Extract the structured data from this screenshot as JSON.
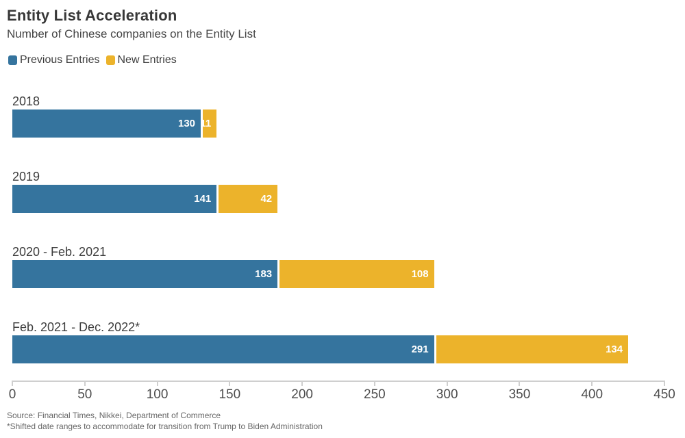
{
  "header": {
    "title": "Entity List Acceleration",
    "subtitle": "Number of Chinese companies on the Entity List"
  },
  "legend": [
    {
      "label": "Previous Entries",
      "color": "#35749e"
    },
    {
      "label": "New Entries",
      "color": "#ecb32b"
    }
  ],
  "chart_data": {
    "type": "bar",
    "orientation": "horizontal",
    "stacked": true,
    "title": "Entity List Acceleration",
    "subtitle": "Number of Chinese companies on the Entity List",
    "categories": [
      "2018",
      "2019",
      "2020 - Feb. 2021",
      "Feb. 2021 - Dec. 2022*"
    ],
    "series": [
      {
        "name": "Previous Entries",
        "color": "#35749e",
        "values": [
          130,
          141,
          183,
          291
        ]
      },
      {
        "name": "New Entries",
        "color": "#ecb32b",
        "values": [
          11,
          42,
          108,
          134
        ]
      }
    ],
    "xlabel": "",
    "ylabel": "",
    "xlim": [
      0,
      450
    ],
    "x_ticks": [
      0,
      50,
      100,
      150,
      200,
      250,
      300,
      350,
      400,
      450
    ],
    "grid": false,
    "legend_position": "top-left",
    "value_labels": "inside-right-white"
  },
  "footer": {
    "source": "Source: Financial Times, Nikkei, Department of Commerce",
    "note": "*Shifted date ranges to accommodate for transition from Trump to Biden Administration"
  }
}
